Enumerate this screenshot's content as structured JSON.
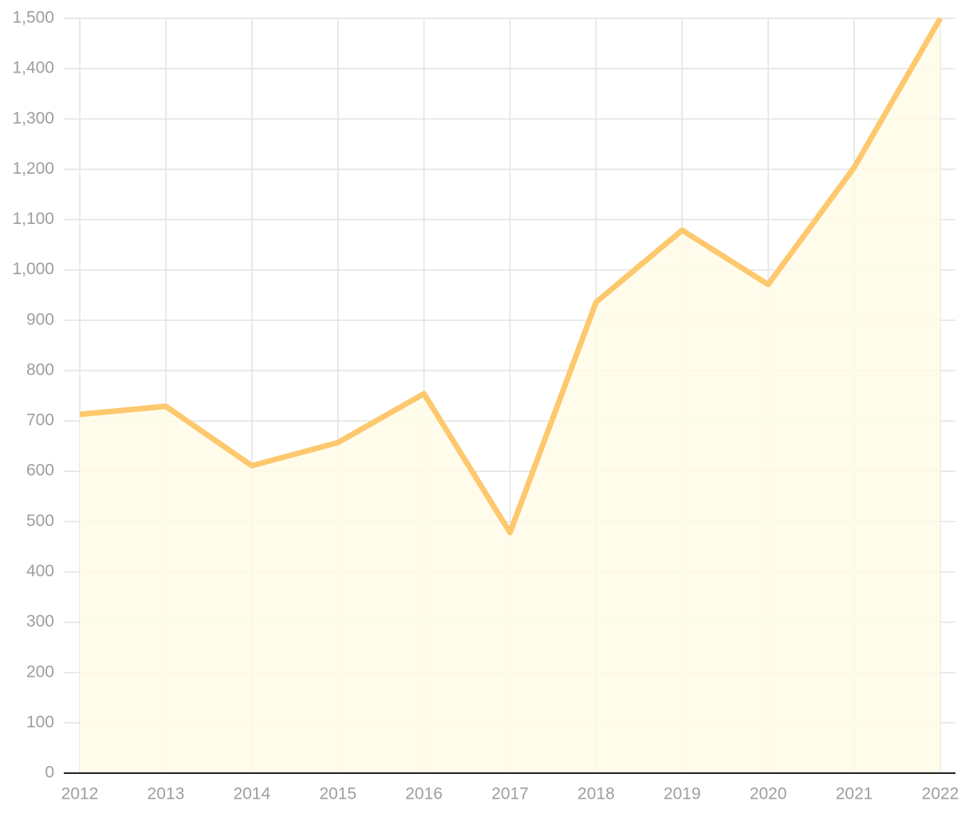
{
  "chart_data": {
    "type": "area",
    "categories": [
      "2012",
      "2013",
      "2014",
      "2015",
      "2016",
      "2017",
      "2018",
      "2019",
      "2020",
      "2021",
      "2022"
    ],
    "series": [
      {
        "color": "#fdc86e",
        "fill": "#fffbe8",
        "values": [
          713,
          729,
          611,
          657,
          754,
          478,
          936,
          1079,
          971,
          1204,
          1500
        ]
      }
    ],
    "ylim": [
      0,
      1500
    ],
    "yticks": [
      0,
      100,
      200,
      300,
      400,
      500,
      600,
      700,
      800,
      900,
      {
        "value": 1000,
        "label": "1,000"
      },
      {
        "value": 1100,
        "label": "1,100"
      },
      {
        "value": 1200,
        "label": "1,200"
      },
      {
        "value": 1300,
        "label": "1,300"
      },
      {
        "value": 1400,
        "label": "1,400"
      },
      {
        "value": 1500,
        "label": "1,500"
      }
    ],
    "grid": true
  }
}
